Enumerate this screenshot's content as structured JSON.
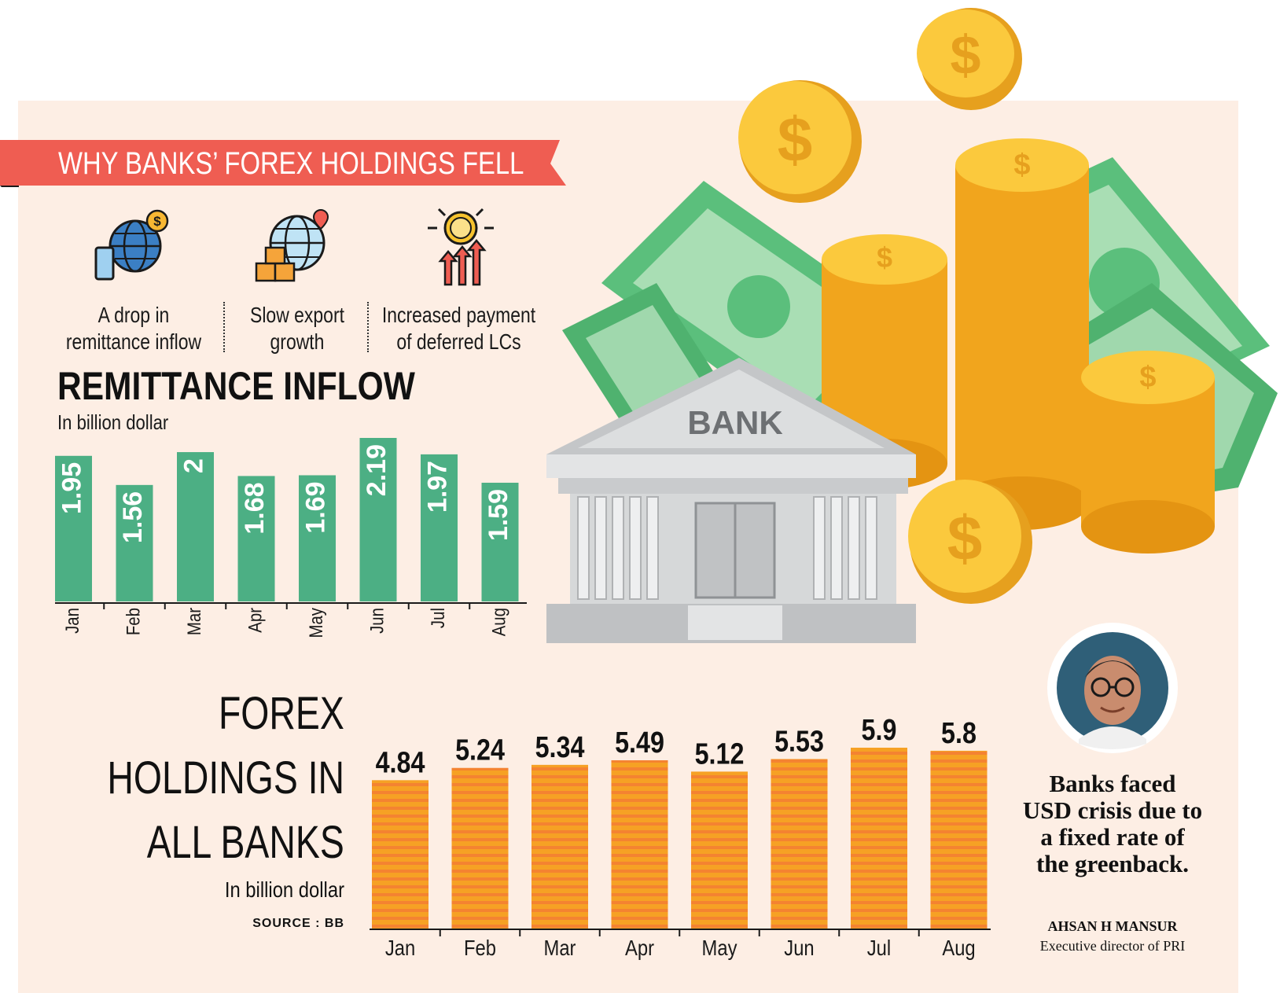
{
  "banner": {
    "title": "WHY BANKS’ FOREX HOLDINGS FELL"
  },
  "reasons": [
    {
      "label": "A drop in\nremittance inflow",
      "icon": "globe-phone-dollar-icon"
    },
    {
      "label": "Slow export\ngrowth",
      "icon": "globe-boxes-icon"
    },
    {
      "label": "Increased payment\nof deferred LCs",
      "icon": "coin-rising-arrows-icon"
    }
  ],
  "illustration": {
    "bank_sign": "BANK",
    "icon": "bank-money-illustration"
  },
  "chart_data": [
    {
      "type": "bar",
      "title": "REMITTANCE INFLOW",
      "subtitle": "In billion dollar",
      "categories": [
        "Jan",
        "Feb",
        "Mar",
        "Apr",
        "May",
        "Jun",
        "Jul",
        "Aug"
      ],
      "values": [
        1.95,
        1.56,
        2,
        1.68,
        1.69,
        2.19,
        1.97,
        1.59
      ],
      "value_labels": [
        "1.95",
        "1.56",
        "2",
        "1.68",
        "1.69",
        "2.19",
        "1.97",
        "1.59"
      ],
      "ylim": [
        0,
        2.19
      ],
      "color": "#4caf84"
    },
    {
      "type": "bar",
      "title_lines": [
        "FOREX",
        "HOLDINGS IN",
        "ALL BANKS"
      ],
      "subtitle": "In billion dollar",
      "source": "SOURCE : BB",
      "categories": [
        "Jan",
        "Feb",
        "Mar",
        "Apr",
        "May",
        "Jun",
        "Jul",
        "Aug"
      ],
      "values": [
        4.84,
        5.24,
        5.34,
        5.49,
        5.12,
        5.53,
        5.9,
        5.8
      ],
      "value_labels": [
        "4.84",
        "5.24",
        "5.34",
        "5.49",
        "5.12",
        "5.53",
        "5.9",
        "5.8"
      ],
      "ylim": [
        0,
        5.9
      ],
      "color": "#f6a124",
      "stripe_color": "#f26a3c"
    }
  ],
  "quote": {
    "text": "Banks faced USD crisis due to a fixed rate of the greenback.",
    "name": "AHSAN H MANSUR",
    "role": "Executive director of PRI"
  },
  "colors": {
    "banner": "#ef5d52",
    "panel": "#fdeee4",
    "green": "#4caf84",
    "orange": "#f6a124"
  }
}
